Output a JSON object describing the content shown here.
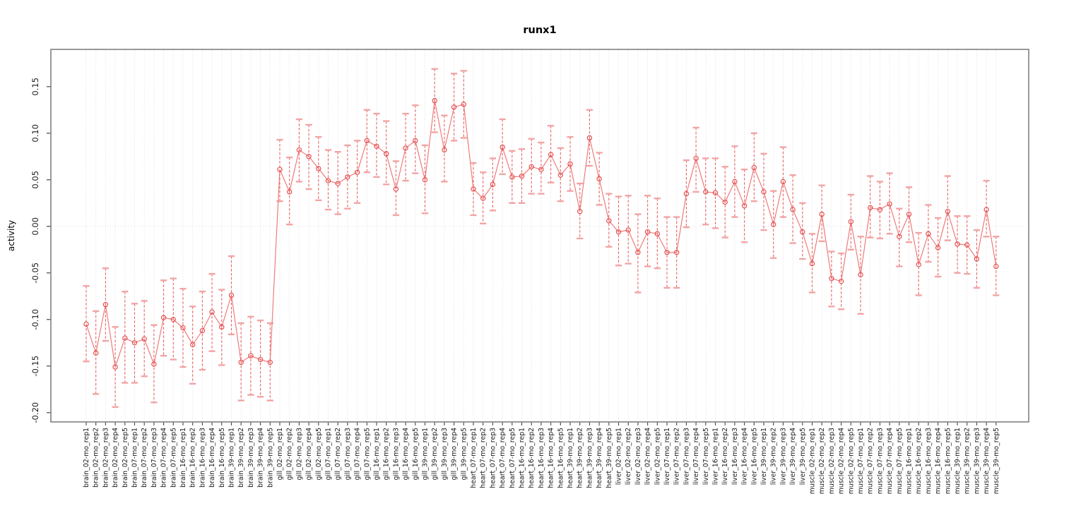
{
  "chart_data": {
    "type": "scatter",
    "subtype": "points-with-error-bars-connected-line",
    "title": "runx1",
    "xlabel": "",
    "ylabel": "activity",
    "ylim": [
      -0.21,
      0.19
    ],
    "yticks": [
      0.15,
      0.1,
      0.05,
      0.0,
      -0.05,
      -0.1,
      -0.15,
      -0.2
    ],
    "ytick_labels": [
      "0.15",
      "0.10",
      "0.05",
      "0.00",
      "-0.05",
      "-0.10",
      "-0.15",
      "-0.20"
    ],
    "grid": "vertical dotted gridline at every category; dotted horizontal line at y=0",
    "legend": "none",
    "marker": "open-circle",
    "colors": {
      "point": "#e34c4c",
      "series_line": "#ef7575",
      "errorbar_line": "#e96363",
      "errorbar_cap": "#f2a4a4",
      "gridline": "#d9d9d9",
      "frame": "#808080",
      "tick": "#444444",
      "text": "#1a1a1a"
    },
    "categories": [
      "brain_02-mo_rep1",
      "brain_02-mo_rep2",
      "brain_02-mo_rep3",
      "brain_02-mo_rep4",
      "brain_02-mo_rep5",
      "brain_07-mo_rep1",
      "brain_07-mo_rep2",
      "brain_07-mo_rep3",
      "brain_07-mo_rep4",
      "brain_07-mo_rep5",
      "brain_16-mo_rep1",
      "brain_16-mo_rep2",
      "brain_16-mo_rep3",
      "brain_16-mo_rep4",
      "brain_16-mo_rep5",
      "brain_39-mo_rep1",
      "brain_39-mo_rep2",
      "brain_39-mo_rep3",
      "brain_39-mo_rep4",
      "brain_39-mo_rep5",
      "gill_02-mo_rep1",
      "gill_02-mo_rep2",
      "gill_02-mo_rep3",
      "gill_02-mo_rep4",
      "gill_02-mo_rep5",
      "gill_07-mo_rep1",
      "gill_07-mo_rep2",
      "gill_07-mo_rep3",
      "gill_07-mo_rep4",
      "gill_07-mo_rep5",
      "gill_16-mo_rep1",
      "gill_16-mo_rep2",
      "gill_16-mo_rep3",
      "gill_16-mo_rep4",
      "gill_16-mo_rep5",
      "gill_39-mo_rep1",
      "gill_39-mo_rep2",
      "gill_39-mo_rep3",
      "gill_39-mo_rep4",
      "gill_39-mo_rep5",
      "heart_07-mo_rep1",
      "heart_07-mo_rep2",
      "heart_07-mo_rep3",
      "heart_07-mo_rep4",
      "heart_07-mo_rep5",
      "heart_16-mo_rep1",
      "heart_16-mo_rep2",
      "heart_16-mo_rep3",
      "heart_16-mo_rep4",
      "heart_16-mo_rep5",
      "heart_39-mo_rep1",
      "heart_39-mo_rep2",
      "heart_39-mo_rep3",
      "heart_39-mo_rep4",
      "heart_39-mo_rep5",
      "liver_02-mo_rep1",
      "liver_02-mo_rep2",
      "liver_02-mo_rep3",
      "liver_02-mo_rep4",
      "liver_02-mo_rep5",
      "liver_07-mo_rep1",
      "liver_07-mo_rep2",
      "liver_07-mo_rep3",
      "liver_07-mo_rep4",
      "liver_07-mo_rep5",
      "liver_16-mo_rep1",
      "liver_16-mo_rep2",
      "liver_16-mo_rep3",
      "liver_16-mo_rep4",
      "liver_16-mo_rep5",
      "liver_39-mo_rep1",
      "liver_39-mo_rep2",
      "liver_39-mo_rep3",
      "liver_39-mo_rep4",
      "liver_39-mo_rep5",
      "muscle_02-mo_rep1",
      "muscle_02-mo_rep2",
      "muscle_02-mo_rep3",
      "muscle_02-mo_rep4",
      "muscle_02-mo_rep5",
      "muscle_07-mo_rep1",
      "muscle_07-mo_rep2",
      "muscle_07-mo_rep3",
      "muscle_07-mo_rep4",
      "muscle_07-mo_rep5",
      "muscle_16-mo_rep1",
      "muscle_16-mo_rep2",
      "muscle_16-mo_rep3",
      "muscle_16-mo_rep4",
      "muscle_16-mo_rep5",
      "muscle_39-mo_rep1",
      "muscle_39-mo_rep2",
      "muscle_39-mo_rep3",
      "muscle_39-mo_rep4",
      "muscle_39-mo_rep5"
    ],
    "values": [
      -0.105,
      -0.136,
      -0.084,
      -0.151,
      -0.12,
      -0.125,
      -0.121,
      -0.148,
      -0.098,
      -0.1,
      -0.109,
      -0.127,
      -0.112,
      -0.092,
      -0.108,
      -0.074,
      -0.146,
      -0.139,
      -0.143,
      -0.146,
      0.061,
      0.037,
      0.082,
      0.075,
      0.062,
      0.049,
      0.046,
      0.053,
      0.058,
      0.092,
      0.086,
      0.078,
      0.04,
      0.084,
      0.092,
      0.05,
      0.135,
      0.082,
      0.128,
      0.131,
      0.04,
      0.03,
      0.045,
      0.085,
      0.053,
      0.054,
      0.064,
      0.061,
      0.077,
      0.055,
      0.067,
      0.016,
      0.095,
      0.051,
      0.006,
      -0.006,
      -0.004,
      -0.028,
      -0.006,
      -0.008,
      -0.028,
      -0.028,
      0.035,
      0.073,
      0.037,
      0.036,
      0.026,
      0.048,
      0.022,
      0.063,
      0.037,
      0.002,
      0.048,
      0.018,
      -0.006,
      -0.04,
      0.013,
      -0.056,
      -0.059,
      0.005,
      -0.052,
      0.02,
      0.018,
      0.024,
      -0.011,
      0.013,
      -0.041,
      -0.008,
      -0.023,
      0.016,
      -0.019,
      -0.02,
      -0.035,
      0.018,
      -0.043
    ],
    "err_low": [
      -0.145,
      -0.18,
      -0.123,
      -0.194,
      -0.168,
      -0.168,
      -0.161,
      -0.189,
      -0.139,
      -0.143,
      -0.151,
      -0.169,
      -0.154,
      -0.134,
      -0.149,
      -0.116,
      -0.187,
      -0.181,
      -0.183,
      -0.187,
      0.027,
      0.002,
      0.048,
      0.04,
      0.028,
      0.018,
      0.013,
      0.019,
      0.025,
      0.058,
      0.053,
      0.045,
      0.012,
      0.049,
      0.057,
      0.014,
      0.101,
      0.048,
      0.092,
      0.095,
      0.012,
      0.003,
      0.017,
      0.056,
      0.025,
      0.025,
      0.035,
      0.035,
      0.047,
      0.027,
      0.038,
      -0.013,
      0.065,
      0.023,
      -0.022,
      -0.042,
      -0.04,
      -0.071,
      -0.043,
      -0.045,
      -0.066,
      -0.066,
      -0.001,
      0.037,
      0.002,
      -0.002,
      -0.012,
      0.01,
      -0.017,
      0.027,
      -0.004,
      -0.034,
      0.01,
      -0.018,
      -0.035,
      -0.071,
      -0.016,
      -0.086,
      -0.089,
      -0.025,
      -0.094,
      -0.012,
      -0.013,
      -0.008,
      -0.043,
      -0.017,
      -0.074,
      -0.038,
      -0.054,
      -0.015,
      -0.05,
      -0.051,
      -0.066,
      -0.011,
      -0.074
    ],
    "err_high": [
      -0.064,
      -0.091,
      -0.045,
      -0.108,
      -0.07,
      -0.083,
      -0.08,
      -0.106,
      -0.058,
      -0.056,
      -0.067,
      -0.086,
      -0.07,
      -0.051,
      -0.068,
      -0.032,
      -0.104,
      -0.097,
      -0.101,
      -0.104,
      0.093,
      0.074,
      0.115,
      0.109,
      0.096,
      0.082,
      0.08,
      0.087,
      0.092,
      0.125,
      0.121,
      0.113,
      0.07,
      0.121,
      0.13,
      0.087,
      0.169,
      0.119,
      0.164,
      0.167,
      0.068,
      0.058,
      0.073,
      0.115,
      0.081,
      0.083,
      0.094,
      0.09,
      0.108,
      0.084,
      0.096,
      0.046,
      0.125,
      0.079,
      0.035,
      0.032,
      0.033,
      0.013,
      0.033,
      0.03,
      0.01,
      0.01,
      0.071,
      0.106,
      0.073,
      0.073,
      0.064,
      0.086,
      0.061,
      0.1,
      0.078,
      0.038,
      0.085,
      0.055,
      0.025,
      -0.008,
      0.044,
      -0.027,
      -0.029,
      0.034,
      -0.011,
      0.054,
      0.048,
      0.057,
      0.019,
      0.042,
      -0.007,
      0.023,
      0.009,
      0.054,
      0.011,
      0.011,
      -0.004,
      0.049,
      -0.011
    ]
  }
}
